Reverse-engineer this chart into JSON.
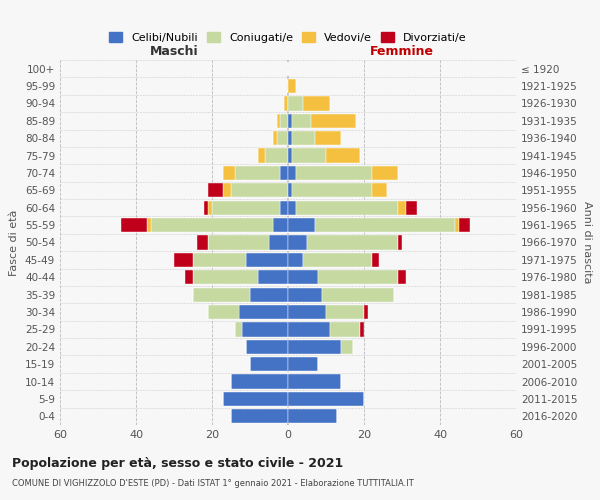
{
  "age_groups": [
    "0-4",
    "5-9",
    "10-14",
    "15-19",
    "20-24",
    "25-29",
    "30-34",
    "35-39",
    "40-44",
    "45-49",
    "50-54",
    "55-59",
    "60-64",
    "65-69",
    "70-74",
    "75-79",
    "80-84",
    "85-89",
    "90-94",
    "95-99",
    "100+"
  ],
  "birth_years": [
    "2016-2020",
    "2011-2015",
    "2006-2010",
    "2001-2005",
    "1996-2000",
    "1991-1995",
    "1986-1990",
    "1981-1985",
    "1976-1980",
    "1971-1975",
    "1966-1970",
    "1961-1965",
    "1956-1960",
    "1951-1955",
    "1946-1950",
    "1941-1945",
    "1936-1940",
    "1931-1935",
    "1926-1930",
    "1921-1925",
    "≤ 1920"
  ],
  "maschi": {
    "celibi": [
      15,
      17,
      15,
      10,
      11,
      12,
      13,
      10,
      8,
      11,
      5,
      4,
      2,
      0,
      2,
      0,
      0,
      0,
      0,
      0,
      0
    ],
    "coniugati": [
      0,
      0,
      0,
      0,
      0,
      2,
      8,
      15,
      17,
      14,
      16,
      32,
      18,
      15,
      12,
      6,
      3,
      2,
      0,
      0,
      0
    ],
    "vedovi": [
      0,
      0,
      0,
      0,
      0,
      0,
      0,
      0,
      0,
      0,
      0,
      1,
      1,
      2,
      3,
      2,
      1,
      1,
      1,
      0,
      0
    ],
    "divorziati": [
      0,
      0,
      0,
      0,
      0,
      0,
      0,
      0,
      2,
      5,
      3,
      7,
      1,
      4,
      0,
      0,
      0,
      0,
      0,
      0,
      0
    ]
  },
  "femmine": {
    "nubili": [
      13,
      20,
      14,
      8,
      14,
      11,
      10,
      9,
      8,
      4,
      5,
      7,
      2,
      1,
      2,
      1,
      1,
      1,
      0,
      0,
      0
    ],
    "coniugate": [
      0,
      0,
      0,
      0,
      3,
      8,
      10,
      19,
      21,
      18,
      24,
      37,
      27,
      21,
      20,
      9,
      6,
      5,
      4,
      0,
      0
    ],
    "vedove": [
      0,
      0,
      0,
      0,
      0,
      0,
      0,
      0,
      0,
      0,
      0,
      1,
      2,
      4,
      7,
      9,
      7,
      12,
      7,
      2,
      0
    ],
    "divorziate": [
      0,
      0,
      0,
      0,
      0,
      1,
      1,
      0,
      2,
      2,
      1,
      3,
      3,
      0,
      0,
      0,
      0,
      0,
      0,
      0,
      0
    ]
  },
  "colors": {
    "celibi": "#4472C4",
    "coniugati": "#C5D9A0",
    "vedovi": "#F5C040",
    "divorziati": "#C0001A"
  },
  "xlim": 60,
  "title": "Popolazione per età, sesso e stato civile - 2021",
  "subtitle": "COMUNE DI VIGHIZZOLO D'ESTE (PD) - Dati ISTAT 1° gennaio 2021 - Elaborazione TUTTITALIA.IT",
  "ylabel_left": "Fasce di età",
  "ylabel_right": "Anni di nascita",
  "xlabel_maschi": "Maschi",
  "xlabel_femmine": "Femmine",
  "legend_labels": [
    "Celibi/Nubili",
    "Coniugati/e",
    "Vedovi/e",
    "Divorziati/e"
  ],
  "bg_color": "#F7F7F7"
}
